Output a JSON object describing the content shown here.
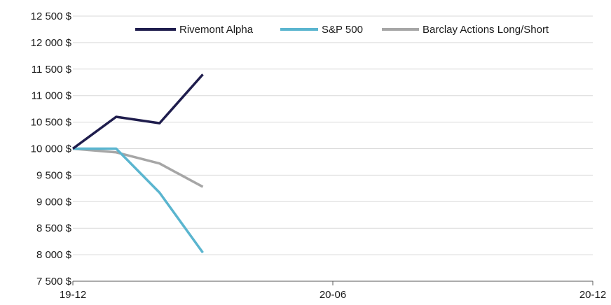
{
  "chart_data": {
    "type": "line",
    "x": [
      "19-12",
      "20-01",
      "20-02",
      "20-03"
    ],
    "x_tick_labels": [
      "19-12",
      "20-06",
      "20-12"
    ],
    "y_tick_labels": [
      "7 500 $",
      "8 000 $",
      "8 500 $",
      "9 000 $",
      "9 500 $",
      "10 000 $",
      "10 500 $",
      "11 000 $",
      "11 500 $",
      "12 000 $",
      "12 500 $"
    ],
    "ylim": [
      7500,
      12500
    ],
    "xlim": [
      "19-12",
      "20-12"
    ],
    "grid": true,
    "legend_position": "top-right",
    "series": [
      {
        "name": "Rivemont Alpha",
        "color": "#1f1d4d",
        "values": [
          10000,
          10600,
          10480,
          11400
        ]
      },
      {
        "name": "S&P 500",
        "color": "#5ab5cf",
        "values": [
          10000,
          10000,
          9170,
          8040
        ]
      },
      {
        "name": "Barclay Actions Long/Short",
        "color": "#a6a6a6",
        "values": [
          10000,
          9930,
          9720,
          9280
        ]
      }
    ]
  }
}
